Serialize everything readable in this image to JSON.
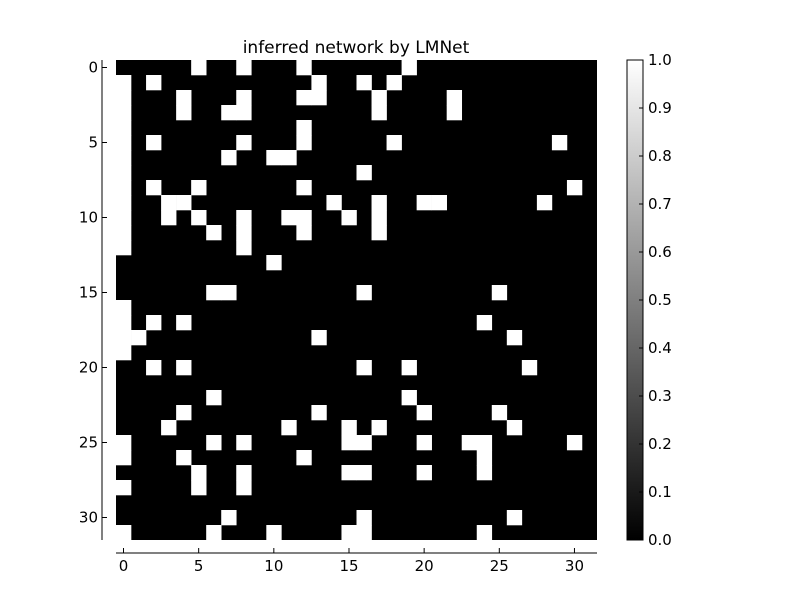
{
  "chart_data": {
    "type": "heatmap",
    "title": "inferred network by LMNet",
    "xlabel": "",
    "ylabel": "",
    "xlim": [
      -0.5,
      31.5
    ],
    "ylim": [
      31.5,
      -0.5
    ],
    "x_ticks": [
      0,
      5,
      10,
      15,
      20,
      25,
      30
    ],
    "y_ticks": [
      0,
      5,
      10,
      15,
      20,
      25,
      30
    ],
    "colorbar": {
      "min": 0.0,
      "max": 1.0,
      "ticks": [
        "0.0",
        "0.1",
        "0.2",
        "0.3",
        "0.4",
        "0.5",
        "0.6",
        "0.7",
        "0.8",
        "0.9",
        "1.0"
      ],
      "colormap": "gray"
    },
    "grid": false,
    "size": 32,
    "matrix": [
      [
        0,
        0,
        0,
        0,
        0,
        1,
        0,
        0,
        1,
        0,
        0,
        0,
        1,
        0,
        0,
        0,
        0,
        0,
        0,
        1,
        0,
        0,
        0,
        0,
        0,
        0,
        0,
        0,
        0,
        0,
        0,
        0
      ],
      [
        1,
        0,
        1,
        0,
        0,
        0,
        0,
        0,
        0,
        0,
        0,
        0,
        0,
        1,
        0,
        0,
        1,
        0,
        1,
        0,
        0,
        0,
        0,
        0,
        0,
        0,
        0,
        0,
        0,
        0,
        0,
        0
      ],
      [
        1,
        0,
        0,
        0,
        1,
        0,
        0,
        0,
        1,
        0,
        0,
        0,
        1,
        1,
        0,
        0,
        0,
        1,
        0,
        0,
        0,
        0,
        1,
        0,
        0,
        0,
        0,
        0,
        0,
        0,
        0,
        0
      ],
      [
        1,
        0,
        0,
        0,
        1,
        0,
        0,
        1,
        1,
        0,
        0,
        0,
        0,
        0,
        0,
        0,
        0,
        1,
        0,
        0,
        0,
        0,
        1,
        0,
        0,
        0,
        0,
        0,
        0,
        0,
        0,
        0
      ],
      [
        1,
        0,
        0,
        0,
        0,
        0,
        0,
        0,
        0,
        0,
        0,
        0,
        1,
        0,
        0,
        0,
        0,
        0,
        0,
        0,
        0,
        0,
        0,
        0,
        0,
        0,
        0,
        0,
        0,
        0,
        0,
        0
      ],
      [
        1,
        0,
        1,
        0,
        0,
        0,
        0,
        0,
        1,
        0,
        0,
        0,
        1,
        0,
        0,
        0,
        0,
        0,
        1,
        0,
        0,
        0,
        0,
        0,
        0,
        0,
        0,
        0,
        0,
        1,
        0,
        0
      ],
      [
        1,
        0,
        0,
        0,
        0,
        0,
        0,
        1,
        0,
        0,
        1,
        1,
        0,
        0,
        0,
        0,
        0,
        0,
        0,
        0,
        0,
        0,
        0,
        0,
        0,
        0,
        0,
        0,
        0,
        0,
        0,
        0
      ],
      [
        1,
        0,
        0,
        0,
        0,
        0,
        0,
        0,
        0,
        0,
        0,
        0,
        0,
        0,
        0,
        0,
        1,
        0,
        0,
        0,
        0,
        0,
        0,
        0,
        0,
        0,
        0,
        0,
        0,
        0,
        0,
        0
      ],
      [
        1,
        0,
        1,
        0,
        0,
        1,
        0,
        0,
        0,
        0,
        0,
        0,
        1,
        0,
        0,
        0,
        0,
        0,
        0,
        0,
        0,
        0,
        0,
        0,
        0,
        0,
        0,
        0,
        0,
        0,
        1,
        0
      ],
      [
        1,
        0,
        0,
        1,
        1,
        0,
        0,
        0,
        0,
        0,
        0,
        0,
        0,
        0,
        1,
        0,
        0,
        1,
        0,
        0,
        1,
        1,
        0,
        0,
        0,
        0,
        0,
        0,
        1,
        0,
        0,
        0
      ],
      [
        1,
        0,
        0,
        1,
        0,
        1,
        0,
        0,
        1,
        0,
        0,
        1,
        1,
        0,
        0,
        1,
        0,
        1,
        0,
        0,
        0,
        0,
        0,
        0,
        0,
        0,
        0,
        0,
        0,
        0,
        0,
        0
      ],
      [
        1,
        0,
        0,
        0,
        0,
        0,
        1,
        0,
        1,
        0,
        0,
        0,
        1,
        0,
        0,
        0,
        0,
        1,
        0,
        0,
        0,
        0,
        0,
        0,
        0,
        0,
        0,
        0,
        0,
        0,
        0,
        0
      ],
      [
        1,
        0,
        0,
        0,
        0,
        0,
        0,
        0,
        1,
        0,
        0,
        0,
        0,
        0,
        0,
        0,
        0,
        0,
        0,
        0,
        0,
        0,
        0,
        0,
        0,
        0,
        0,
        0,
        0,
        0,
        0,
        0
      ],
      [
        0,
        0,
        0,
        0,
        0,
        0,
        0,
        0,
        0,
        0,
        1,
        0,
        0,
        0,
        0,
        0,
        0,
        0,
        0,
        0,
        0,
        0,
        0,
        0,
        0,
        0,
        0,
        0,
        0,
        0,
        0,
        0
      ],
      [
        0,
        0,
        0,
        0,
        0,
        0,
        0,
        0,
        0,
        0,
        0,
        0,
        0,
        0,
        0,
        0,
        0,
        0,
        0,
        0,
        0,
        0,
        0,
        0,
        0,
        0,
        0,
        0,
        0,
        0,
        0,
        0
      ],
      [
        0,
        0,
        0,
        0,
        0,
        0,
        1,
        1,
        0,
        0,
        0,
        0,
        0,
        0,
        0,
        0,
        1,
        0,
        0,
        0,
        0,
        0,
        0,
        0,
        0,
        1,
        0,
        0,
        0,
        0,
        0,
        0
      ],
      [
        1,
        0,
        0,
        0,
        0,
        0,
        0,
        0,
        0,
        0,
        0,
        0,
        0,
        0,
        0,
        0,
        0,
        0,
        0,
        0,
        0,
        0,
        0,
        0,
        0,
        0,
        0,
        0,
        0,
        0,
        0,
        0
      ],
      [
        1,
        0,
        1,
        0,
        1,
        0,
        0,
        0,
        0,
        0,
        0,
        0,
        0,
        0,
        0,
        0,
        0,
        0,
        0,
        0,
        0,
        0,
        0,
        0,
        1,
        0,
        0,
        0,
        0,
        0,
        0,
        0
      ],
      [
        1,
        1,
        0,
        0,
        0,
        0,
        0,
        0,
        0,
        0,
        0,
        0,
        0,
        1,
        0,
        0,
        0,
        0,
        0,
        0,
        0,
        0,
        0,
        0,
        0,
        0,
        1,
        0,
        0,
        0,
        0,
        0
      ],
      [
        1,
        0,
        0,
        0,
        0,
        0,
        0,
        0,
        0,
        0,
        0,
        0,
        0,
        0,
        0,
        0,
        0,
        0,
        0,
        0,
        0,
        0,
        0,
        0,
        0,
        0,
        0,
        0,
        0,
        0,
        0,
        0
      ],
      [
        0,
        0,
        1,
        0,
        1,
        0,
        0,
        0,
        0,
        0,
        0,
        0,
        0,
        0,
        0,
        0,
        1,
        0,
        0,
        1,
        0,
        0,
        0,
        0,
        0,
        0,
        0,
        1,
        0,
        0,
        0,
        0
      ],
      [
        0,
        0,
        0,
        0,
        0,
        0,
        0,
        0,
        0,
        0,
        0,
        0,
        0,
        0,
        0,
        0,
        0,
        0,
        0,
        0,
        0,
        0,
        0,
        0,
        0,
        0,
        0,
        0,
        0,
        0,
        0,
        0
      ],
      [
        0,
        0,
        0,
        0,
        0,
        0,
        1,
        0,
        0,
        0,
        0,
        0,
        0,
        0,
        0,
        0,
        0,
        0,
        0,
        1,
        0,
        0,
        0,
        0,
        0,
        0,
        0,
        0,
        0,
        0,
        0,
        0
      ],
      [
        0,
        0,
        0,
        0,
        1,
        0,
        0,
        0,
        0,
        0,
        0,
        0,
        0,
        1,
        0,
        0,
        0,
        0,
        0,
        0,
        1,
        0,
        0,
        0,
        0,
        1,
        0,
        0,
        0,
        0,
        0,
        0
      ],
      [
        0,
        0,
        0,
        1,
        0,
        0,
        0,
        0,
        0,
        0,
        0,
        1,
        0,
        0,
        0,
        1,
        0,
        1,
        0,
        0,
        0,
        0,
        0,
        0,
        0,
        0,
        1,
        0,
        0,
        0,
        0,
        0
      ],
      [
        1,
        0,
        0,
        0,
        0,
        0,
        1,
        0,
        1,
        0,
        0,
        0,
        0,
        0,
        0,
        1,
        1,
        0,
        0,
        0,
        1,
        0,
        0,
        1,
        1,
        0,
        0,
        0,
        0,
        0,
        1,
        0
      ],
      [
        1,
        0,
        0,
        0,
        1,
        0,
        0,
        0,
        0,
        0,
        0,
        0,
        1,
        0,
        0,
        0,
        0,
        0,
        0,
        0,
        0,
        0,
        0,
        0,
        1,
        0,
        0,
        0,
        0,
        0,
        0,
        0
      ],
      [
        0,
        0,
        0,
        0,
        0,
        1,
        0,
        0,
        1,
        0,
        0,
        0,
        0,
        0,
        0,
        1,
        1,
        0,
        0,
        0,
        1,
        0,
        0,
        0,
        1,
        0,
        0,
        0,
        0,
        0,
        0,
        0
      ],
      [
        1,
        0,
        0,
        0,
        0,
        1,
        0,
        0,
        1,
        0,
        0,
        0,
        0,
        0,
        0,
        0,
        0,
        0,
        0,
        0,
        0,
        0,
        0,
        0,
        0,
        0,
        0,
        0,
        0,
        0,
        0,
        0
      ],
      [
        0,
        0,
        0,
        0,
        0,
        0,
        0,
        0,
        0,
        0,
        0,
        0,
        0,
        0,
        0,
        0,
        0,
        0,
        0,
        0,
        0,
        0,
        0,
        0,
        0,
        0,
        0,
        0,
        0,
        0,
        0,
        0
      ],
      [
        0,
        0,
        0,
        0,
        0,
        0,
        0,
        1,
        0,
        0,
        0,
        0,
        0,
        0,
        0,
        0,
        1,
        0,
        0,
        0,
        0,
        0,
        0,
        0,
        0,
        0,
        1,
        0,
        0,
        0,
        0,
        0
      ],
      [
        1,
        0,
        0,
        0,
        0,
        0,
        1,
        0,
        0,
        0,
        1,
        0,
        0,
        0,
        0,
        1,
        1,
        0,
        0,
        0,
        0,
        0,
        0,
        0,
        1,
        0,
        0,
        0,
        0,
        0,
        0,
        0
      ]
    ]
  }
}
